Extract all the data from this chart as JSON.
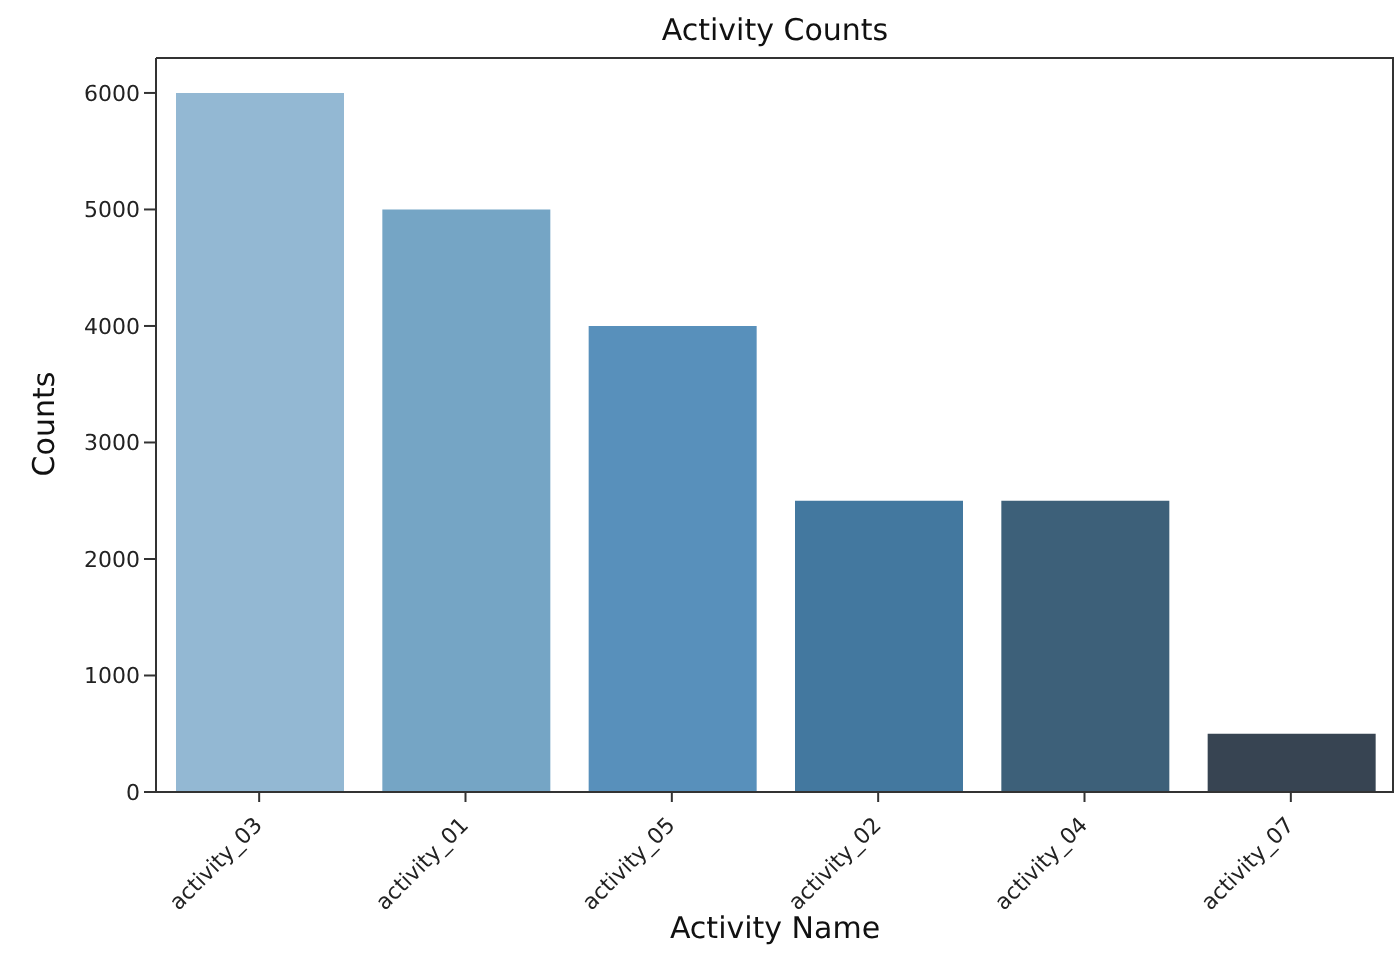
{
  "chart_data": {
    "type": "bar",
    "title": "Activity Counts",
    "xlabel": "Activity Name",
    "ylabel": "Counts",
    "categories": [
      "activity_03",
      "activity_01",
      "activity_05",
      "activity_02",
      "activity_04",
      "activity_07"
    ],
    "values": [
      6000,
      5000,
      4000,
      2500,
      2500,
      500
    ],
    "colors": [
      "#93b8d3",
      "#75a5c5",
      "#5890bb",
      "#43789f",
      "#3d6079",
      "#374452"
    ],
    "ylim": [
      0,
      6300
    ],
    "yticks": [
      0,
      1000,
      2000,
      3000,
      4000,
      5000,
      6000
    ],
    "grid": false,
    "legend": false
  }
}
